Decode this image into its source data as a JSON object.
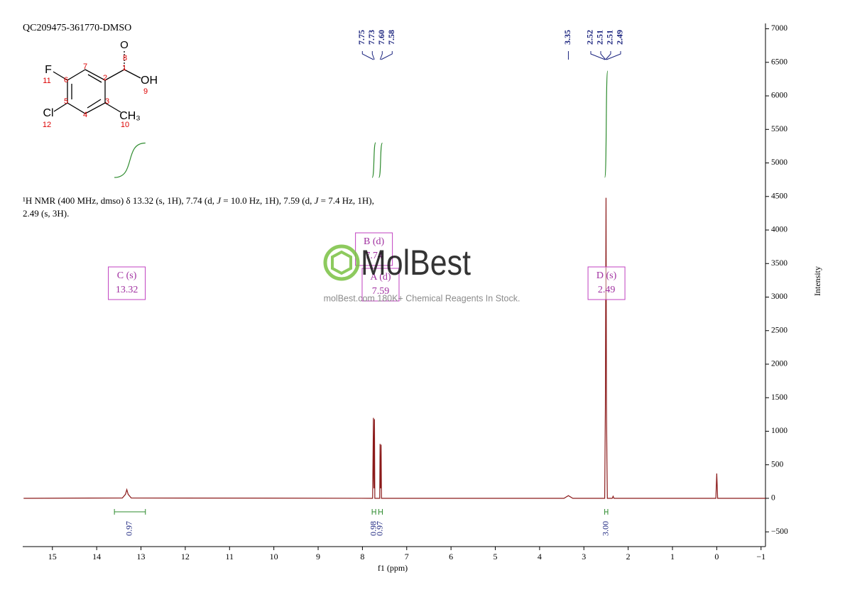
{
  "chart_data": {
    "type": "nmr",
    "title": "QC209475-361770-DMSO",
    "description": [
      "¹H NMR (400 MHz, dmso) δ 13.32 (s, 1H), 7.74 (d, ",
      "J",
      " = 10.0 Hz, 1H), 7.59 (d, ",
      "J",
      " = 7.4 Hz, 1H),",
      "2.49 (s, 3H)."
    ],
    "xlabel": "f1 (ppm)",
    "ylabel": "Intensity",
    "xlim": [
      15.67,
      -1.1
    ],
    "ylim": [
      -720,
      7080
    ],
    "xticks": [
      15,
      14,
      13,
      12,
      11,
      10,
      9,
      8,
      7,
      6,
      5,
      4,
      3,
      2,
      1,
      0,
      {
        "value": -1,
        "label": "−1"
      }
    ],
    "yticks": [
      7000,
      6500,
      6000,
      5500,
      5000,
      4500,
      4000,
      3500,
      3000,
      2500,
      2000,
      1500,
      1000,
      500,
      0,
      {
        "value": -500,
        "label": "−500"
      }
    ],
    "spectrum": {
      "color": "#8b1a1a",
      "x": [
        15.65,
        13.42,
        13.35,
        13.32,
        13.29,
        13.22,
        7.77,
        7.752,
        7.745,
        7.74,
        7.735,
        7.728,
        7.72,
        7.61,
        7.602,
        7.595,
        7.59,
        7.585,
        7.578,
        7.57,
        3.45,
        3.35,
        3.25,
        2.53,
        2.515,
        2.5,
        2.49,
        2.48,
        2.47,
        2.36,
        2.34,
        2.32,
        0.02,
        0,
        -0.02,
        -1.1
      ],
      "y": [
        0,
        5,
        60,
        130,
        60,
        5,
        0,
        1200,
        300,
        150,
        300,
        1180,
        0,
        0,
        810,
        250,
        150,
        250,
        800,
        0,
        0,
        40,
        0,
        0,
        1350,
        4480,
        1400,
        600,
        0,
        0,
        30,
        0,
        0,
        370,
        0,
        0
      ]
    },
    "peak_groups": [
      {
        "x": [
          7.75,
          7.73,
          7.6,
          7.58
        ],
        "labels": [
          "7.75",
          "7.73",
          "7.60",
          "7.58"
        ]
      },
      {
        "x": [
          3.35
        ],
        "labels": [
          "3.35"
        ]
      },
      {
        "x": [
          2.52,
          2.51,
          2.51,
          2.49
        ],
        "labels": [
          "2.52",
          "2.51",
          "2.51",
          "2.49"
        ]
      }
    ],
    "integrals": [
      {
        "from": 13.6,
        "to": 12.9,
        "value": 0.97,
        "label": "0.97"
      },
      {
        "from": 7.78,
        "to": 7.7,
        "value": 0.98,
        "label": "0.98"
      },
      {
        "from": 7.63,
        "to": 7.55,
        "value": 0.97,
        "label": "0.97"
      },
      {
        "from": 2.53,
        "to": 2.46,
        "value": 3,
        "label": "3.00"
      }
    ],
    "multiplets": [
      {
        "name": "C (s)",
        "shift": 13.32,
        "label": "13.32"
      },
      {
        "name": "B (d)",
        "shift": 7.74,
        "label": "7.74"
      },
      {
        "name": "A (d)",
        "shift": 7.59,
        "label": "7.59"
      },
      {
        "name": "D (s)",
        "shift": 2.49,
        "label": "2.49"
      }
    ],
    "structure": {
      "atoms": [
        "F",
        "OH",
        "Cl",
        "CH₃",
        "O"
      ],
      "numbers": [
        "7",
        "1",
        "2",
        "6",
        "11",
        "3",
        "5",
        "4",
        "9",
        "12",
        "10",
        "8"
      ]
    },
    "watermark": {
      "brand": "MolBest",
      "slogan": "molBest.com 180K+ Chemical Reagents In Stock."
    }
  }
}
